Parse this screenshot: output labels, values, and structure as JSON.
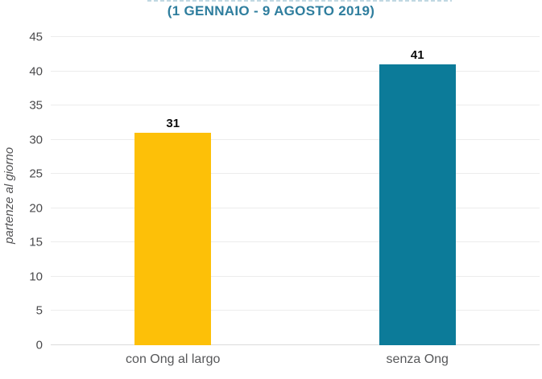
{
  "chart_data": {
    "type": "bar",
    "title": "(1 GENNAIO - 9 AGOSTO 2019)",
    "categories": [
      "con Ong al largo",
      "senza Ong"
    ],
    "values": [
      31,
      41
    ],
    "xlabel": "",
    "ylabel": "partenze al giorno",
    "ylim": [
      0,
      45
    ],
    "yticks": [
      0,
      5,
      10,
      15,
      20,
      25,
      30,
      35,
      40,
      45
    ],
    "grid": true,
    "legend": false,
    "bar_colors": [
      "#FDC008",
      "#0C7B99"
    ],
    "value_label_color": "#0B0B0B"
  },
  "colors": {
    "title": "#2F7E9E",
    "axis_text": "#4A4A4C",
    "category_text": "#57585A",
    "gridline": "#ECECEC",
    "background": "#FFFFFF"
  }
}
